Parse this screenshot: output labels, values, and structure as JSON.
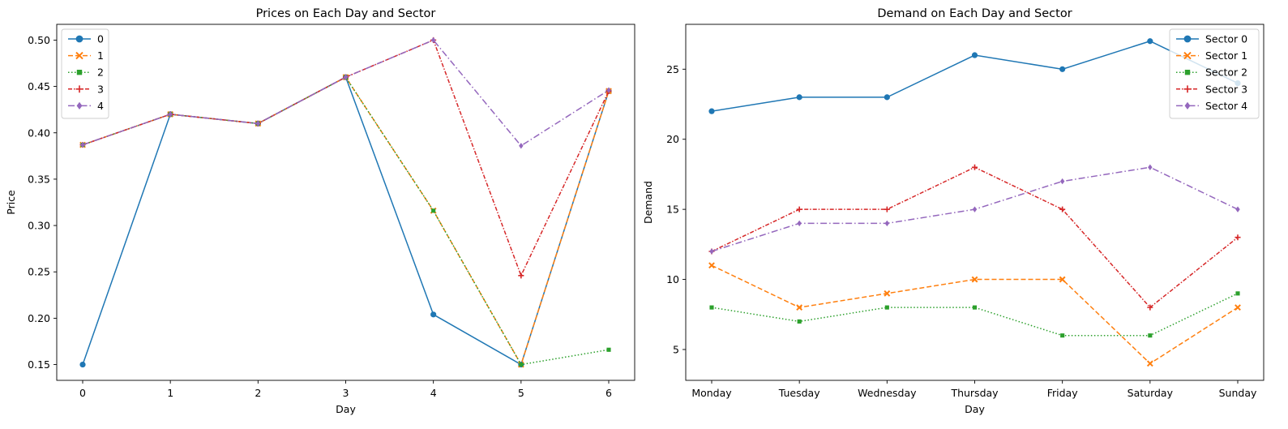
{
  "colors": {
    "series": [
      "#1f77b4",
      "#ff7f0e",
      "#2ca02c",
      "#d62728",
      "#9467bd"
    ],
    "axes": "#000000",
    "legend_border": "#cccccc"
  },
  "chart_data": [
    {
      "type": "line",
      "title": "Prices on Each Day and Sector",
      "xlabel": "Day",
      "ylabel": "Price",
      "x": [
        0,
        1,
        2,
        3,
        4,
        5,
        6
      ],
      "xticks": [
        "0",
        "1",
        "2",
        "3",
        "4",
        "5",
        "6"
      ],
      "ylim": [
        0.133,
        0.517
      ],
      "yticks": [
        0.15,
        0.2,
        0.25,
        0.3,
        0.35,
        0.4,
        0.45,
        0.5
      ],
      "ytick_labels": [
        "0.15",
        "0.20",
        "0.25",
        "0.30",
        "0.35",
        "0.40",
        "0.45",
        "0.50"
      ],
      "legend_position": "upper-left",
      "grid": false,
      "series": [
        {
          "name": "0",
          "marker": "circle",
          "dash": "solid",
          "values": [
            0.15,
            0.42,
            0.41,
            0.46,
            0.204,
            0.15,
            0.445
          ]
        },
        {
          "name": "1",
          "marker": "x",
          "dash": "dashed",
          "values": [
            0.387,
            0.42,
            0.41,
            0.46,
            0.316,
            0.15,
            0.445
          ]
        },
        {
          "name": "2",
          "marker": "square",
          "dash": "dotted",
          "values": [
            0.387,
            0.42,
            0.41,
            0.46,
            0.316,
            0.15,
            0.166
          ]
        },
        {
          "name": "3",
          "marker": "plus",
          "dash": "dashdot-red",
          "values": [
            0.387,
            0.42,
            0.41,
            0.46,
            0.5,
            0.246,
            0.445
          ]
        },
        {
          "name": "4",
          "marker": "diamond",
          "dash": "dashdot",
          "values": [
            0.387,
            0.42,
            0.41,
            0.46,
            0.5,
            0.386,
            0.446
          ]
        }
      ]
    },
    {
      "type": "line",
      "title": "Demand on Each Day and Sector",
      "xlabel": "Day",
      "ylabel": "Demand",
      "categories": [
        "Monday",
        "Tuesday",
        "Wednesday",
        "Thursday",
        "Friday",
        "Saturday",
        "Sunday"
      ],
      "ylim": [
        2.8,
        28.2
      ],
      "yticks": [
        5,
        10,
        15,
        20,
        25
      ],
      "ytick_labels": [
        "5",
        "10",
        "15",
        "20",
        "25"
      ],
      "legend_position": "upper-right",
      "grid": false,
      "series": [
        {
          "name": "Sector 0",
          "marker": "circle",
          "dash": "solid",
          "values": [
            22,
            23,
            23,
            26,
            25,
            27,
            24
          ]
        },
        {
          "name": "Sector 1",
          "marker": "x",
          "dash": "dashed",
          "values": [
            11,
            8,
            9,
            10,
            10,
            4,
            8
          ]
        },
        {
          "name": "Sector 2",
          "marker": "square",
          "dash": "dotted",
          "values": [
            8,
            7,
            8,
            8,
            6,
            6,
            9
          ]
        },
        {
          "name": "Sector 3",
          "marker": "plus",
          "dash": "dashdot-red",
          "values": [
            12,
            15,
            15,
            18,
            15,
            8,
            13
          ]
        },
        {
          "name": "Sector 4",
          "marker": "diamond",
          "dash": "dashdot",
          "values": [
            12,
            14,
            14,
            15,
            17,
            18,
            15
          ]
        }
      ]
    }
  ]
}
